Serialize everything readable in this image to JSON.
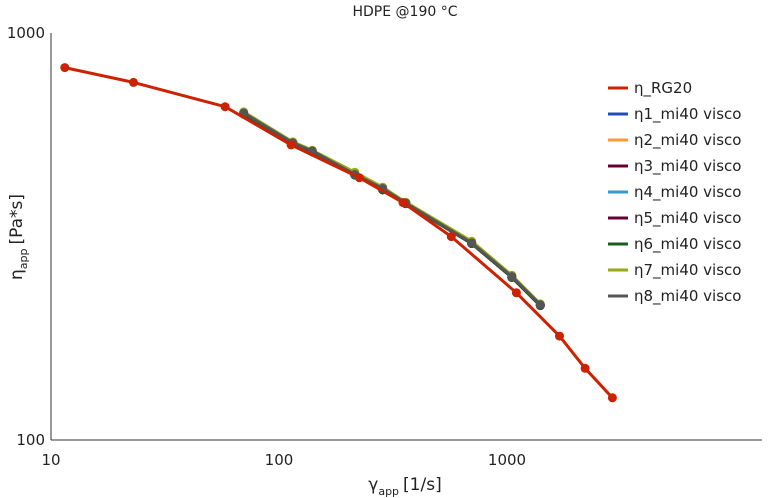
{
  "chart_data": {
    "type": "line",
    "title": "HDPE @190 °C",
    "xlabel": {
      "symbol": "γ",
      "sub": "app",
      "unit": "[1/s]"
    },
    "ylabel": {
      "symbol": "η",
      "sub": "app",
      "unit": "[Pa*s]"
    },
    "x_scale": "log",
    "y_scale": "log",
    "xlim": [
      10,
      10000
    ],
    "ylim": [
      100,
      1000
    ],
    "x_ticks": [
      "10",
      "100",
      "1000"
    ],
    "y_ticks": [
      "100",
      "1000"
    ],
    "grid": false,
    "legend_position": "right",
    "series": [
      {
        "name": "η_RG20",
        "color": "#cc2200",
        "marker": true,
        "x": [
          11.5,
          23,
          58,
          113,
          225,
          350,
          570,
          1100,
          1700,
          2200,
          2900
        ],
        "y": [
          822,
          756,
          659,
          531,
          441,
          383,
          316,
          230,
          180,
          150,
          127
        ]
      },
      {
        "name": "η1_mi40 visco",
        "color": "#1f4fb4",
        "marker": true,
        "x": [
          70,
          115,
          140,
          215,
          285,
          360,
          700,
          1050,
          1400
        ],
        "y": [
          632,
          538,
          511,
          448,
          412,
          381,
          304,
          251,
          214
        ]
      },
      {
        "name": "η2_mi40 visco",
        "color": "#ff9933",
        "marker": true,
        "x": [
          70,
          115,
          140,
          215,
          285,
          360,
          700,
          1050,
          1400
        ],
        "y": [
          632,
          538,
          511,
          448,
          412,
          381,
          304,
          251,
          214
        ]
      },
      {
        "name": "η3_mi40 visco",
        "color": "#660033",
        "marker": true,
        "x": [
          70,
          115,
          140,
          215,
          285,
          360,
          700,
          1050,
          1400
        ],
        "y": [
          632,
          538,
          511,
          448,
          412,
          381,
          304,
          251,
          214
        ]
      },
      {
        "name": "η4_mi40 visco",
        "color": "#3399cc",
        "marker": true,
        "x": [
          70,
          115,
          140,
          215,
          285,
          360,
          700,
          1050,
          1400
        ],
        "y": [
          632,
          538,
          511,
          448,
          412,
          381,
          304,
          251,
          214
        ]
      },
      {
        "name": "η5_mi40 visco",
        "color": "#660033",
        "marker": true,
        "x": [
          70,
          115,
          140,
          215,
          285,
          360,
          700,
          1050,
          1400
        ],
        "y": [
          632,
          538,
          511,
          448,
          412,
          381,
          304,
          251,
          214
        ]
      },
      {
        "name": "η6_mi40 visco",
        "color": "#1a5c1a",
        "marker": true,
        "x": [
          70,
          115,
          140,
          215,
          285,
          360,
          700,
          1050,
          1400
        ],
        "y": [
          632,
          538,
          511,
          448,
          412,
          381,
          304,
          251,
          214
        ]
      },
      {
        "name": "η7_mi40 visco",
        "color": "#99aa11",
        "marker": true,
        "x": [
          70,
          115,
          140,
          215,
          285,
          360,
          700,
          1050,
          1400
        ],
        "y": [
          640,
          540,
          515,
          455,
          418,
          384,
          308,
          254,
          216
        ]
      },
      {
        "name": "η8_mi40 visco",
        "color": "#555555",
        "marker": true,
        "x": [
          70,
          115,
          140,
          215,
          285,
          360,
          700,
          1050,
          1400
        ],
        "y": [
          636,
          537,
          513,
          449,
          415,
          382,
          305,
          252,
          215
        ]
      }
    ]
  }
}
